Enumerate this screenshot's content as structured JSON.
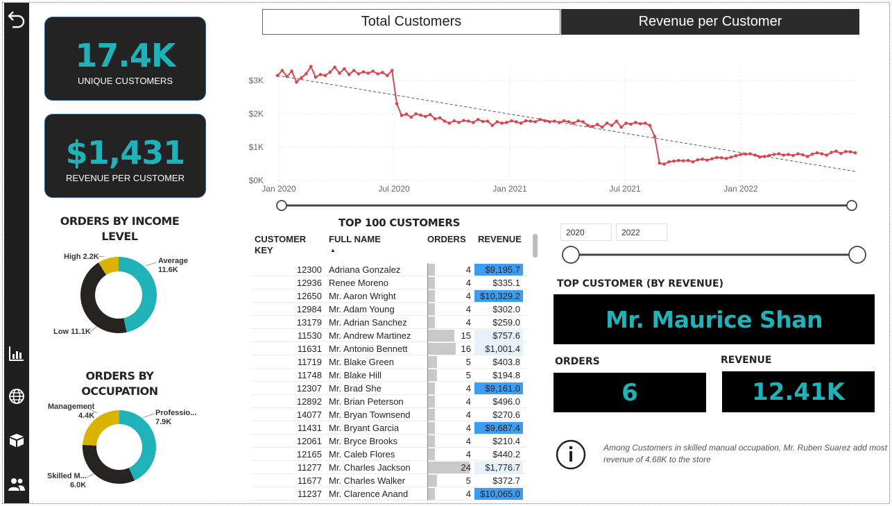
{
  "kpis": {
    "unique_customers": {
      "value": "17.4K",
      "label": "UNIQUE CUSTOMERS"
    },
    "revenue_per_customer": {
      "value": "$1,431",
      "label": "REVENUE PER CUSTOMER"
    }
  },
  "income": {
    "title_line1": "ORDERS BY INCOME",
    "title_line2": "LEVEL",
    "slices": [
      {
        "name": "Average",
        "value": "11.6K",
        "num": 11.6,
        "color": "#1fb2b8"
      },
      {
        "name": "Low",
        "value": "11.1K",
        "num": 11.1,
        "color": "#252423"
      },
      {
        "name": "High",
        "value": "2.2K",
        "num": 2.2,
        "color": "#d9b300"
      }
    ]
  },
  "occupation": {
    "title_line1": "ORDERS BY",
    "title_line2": "OCCUPATION",
    "slices": [
      {
        "name": "Professio...",
        "value": "7.9K",
        "num": 7.9,
        "color": "#1fb2b8"
      },
      {
        "name": "Skilled M...",
        "value": "6.0K",
        "num": 6.0,
        "color": "#252423"
      },
      {
        "name": "Management",
        "value": "4.4K",
        "num": 4.4,
        "color": "#d9b300"
      }
    ]
  },
  "tabs": {
    "total_customers": "Total Customers",
    "revenue_per_customer": "Revenue per Customer"
  },
  "chart_data": {
    "type": "line",
    "y_ticks": [
      "$0K",
      "$1K",
      "$2K",
      "$3K"
    ],
    "x_ticks": [
      "Jan 2020",
      "Jul 2020",
      "Jan 2021",
      "Jul 2021",
      "Jan 2022"
    ],
    "ylim": [
      0,
      3000
    ],
    "series": [
      {
        "color": "#d64550",
        "values": [
          3150,
          3300,
          3120,
          3280,
          2950,
          3080,
          3200,
          3420,
          3100,
          3180,
          3150,
          3250,
          3400,
          3220,
          3350,
          3180,
          3300,
          3200,
          3260,
          3220,
          3280,
          3200,
          3240,
          3150,
          3300,
          2300,
          1950,
          1990,
          1900,
          2000,
          1960,
          1920,
          1980,
          1850,
          1880,
          1780,
          1720,
          1790,
          1740,
          1800,
          1780,
          1740,
          1830,
          1770,
          1780,
          1650,
          1760,
          1720,
          1740,
          1790,
          1760,
          1720,
          1790,
          1780,
          1760,
          1830,
          1790,
          1760,
          1780,
          1740,
          1790,
          1760,
          1720,
          1790,
          1760,
          1650,
          1620,
          1680,
          1600,
          1720,
          1650,
          1780,
          1600,
          1720,
          1690,
          1740,
          1700,
          1720,
          1650,
          1320,
          520,
          490,
          560,
          580,
          600,
          590,
          600,
          560,
          620,
          640,
          610,
          650,
          690,
          680,
          660,
          700,
          740,
          780,
          790,
          800,
          760,
          700,
          720,
          750,
          780,
          800,
          760,
          780,
          750,
          800,
          770,
          720,
          790,
          830,
          800,
          760,
          840,
          880,
          810,
          870,
          860,
          830
        ]
      }
    ],
    "trend": [
      3150,
      270
    ]
  },
  "range_slider": {
    "start": 0,
    "end": 1
  },
  "table": {
    "title": "TOP 100 CUSTOMERS",
    "headers": {
      "key_line1": "CUSTOMER",
      "key_line2": "KEY",
      "name": "FULL NAME",
      "orders": "ORDERS",
      "revenue": "REVENUE"
    },
    "rows": [
      {
        "key": "12300",
        "name": "Adriana Gonzalez",
        "orders": "4",
        "revenue": "$9,195.7",
        "ord_n": 4,
        "rev_n": 9195.7
      },
      {
        "key": "12936",
        "name": "Renee Moreno",
        "orders": "4",
        "revenue": "$335.1",
        "ord_n": 4,
        "rev_n": 335.1
      },
      {
        "key": "12650",
        "name": "Mr. Aaron Wright",
        "orders": "4",
        "revenue": "$10,329.2",
        "ord_n": 4,
        "rev_n": 10329.2
      },
      {
        "key": "12984",
        "name": "Mr. Adam Young",
        "orders": "4",
        "revenue": "$302.0",
        "ord_n": 4,
        "rev_n": 302.0
      },
      {
        "key": "13179",
        "name": "Mr. Adrian Sanchez",
        "orders": "4",
        "revenue": "$259.0",
        "ord_n": 4,
        "rev_n": 259.0
      },
      {
        "key": "11530",
        "name": "Mr. Andrew Martinez",
        "orders": "15",
        "revenue": "$757.6",
        "ord_n": 15,
        "rev_n": 757.6
      },
      {
        "key": "11631",
        "name": "Mr. Antonio Bennett",
        "orders": "16",
        "revenue": "$1,001.4",
        "ord_n": 16,
        "rev_n": 1001.4
      },
      {
        "key": "11719",
        "name": "Mr. Blake Green",
        "orders": "5",
        "revenue": "$403.8",
        "ord_n": 5,
        "rev_n": 403.8
      },
      {
        "key": "11748",
        "name": "Mr. Blake Hill",
        "orders": "5",
        "revenue": "$194.8",
        "ord_n": 5,
        "rev_n": 194.8
      },
      {
        "key": "12307",
        "name": "Mr. Brad She",
        "orders": "4",
        "revenue": "$9,161.0",
        "ord_n": 4,
        "rev_n": 9161.0
      },
      {
        "key": "12892",
        "name": "Mr. Brian Peterson",
        "orders": "4",
        "revenue": "$496.0",
        "ord_n": 4,
        "rev_n": 496.0
      },
      {
        "key": "14077",
        "name": "Mr. Bryan Townsend",
        "orders": "4",
        "revenue": "$270.6",
        "ord_n": 4,
        "rev_n": 270.6
      },
      {
        "key": "11431",
        "name": "Mr. Bryant Garcia",
        "orders": "4",
        "revenue": "$9,687.4",
        "ord_n": 4,
        "rev_n": 9687.4
      },
      {
        "key": "12061",
        "name": "Mr. Bryce Brooks",
        "orders": "4",
        "revenue": "$210.4",
        "ord_n": 4,
        "rev_n": 210.4
      },
      {
        "key": "12165",
        "name": "Mr. Caleb Flores",
        "orders": "4",
        "revenue": "$440.2",
        "ord_n": 4,
        "rev_n": 440.2
      },
      {
        "key": "11277",
        "name": "Mr. Charles Jackson",
        "orders": "24",
        "revenue": "$1,776.7",
        "ord_n": 24,
        "rev_n": 1776.7
      },
      {
        "key": "11677",
        "name": "Mr. Charles Walker",
        "orders": "5",
        "revenue": "$372.7",
        "ord_n": 5,
        "rev_n": 372.7
      },
      {
        "key": "11237",
        "name": "Mr. Clarence Anand",
        "orders": "4",
        "revenue": "$10,065.0",
        "ord_n": 4,
        "rev_n": 10065.0
      }
    ]
  },
  "year_filter": {
    "from": "2020",
    "to": "2022"
  },
  "top_customer": {
    "title": "TOP CUSTOMER (BY REVENUE)",
    "name": "Mr. Maurice Shan",
    "orders_label": "ORDERS",
    "orders_value": "6",
    "revenue_label": "REVENUE",
    "revenue_value": "12.41K"
  },
  "insight": "Among Customers in skilled manual occupation, Mr. Ruben Suarez add most revenue of 4.68K to the store",
  "colors": {
    "accent": "#1fb2b8",
    "line": "#d64550",
    "dark": "#252423",
    "gold": "#d9b300",
    "highlight": "#3d9df2"
  }
}
